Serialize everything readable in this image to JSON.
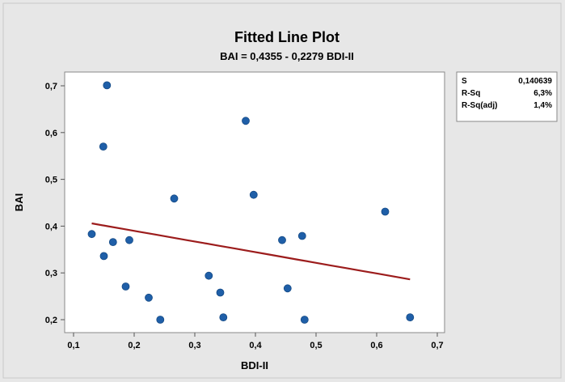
{
  "chart_data": {
    "type": "scatter",
    "title": "Fitted Line Plot",
    "subtitle": "BAI = 0,4355 - 0,2279 BDI-II",
    "xlabel": "BDI-II",
    "ylabel": "BAI",
    "xlim": [
      0.1,
      0.7
    ],
    "ylim": [
      0.18,
      0.72
    ],
    "xticks": [
      0.1,
      0.2,
      0.3,
      0.4,
      0.5,
      0.6,
      0.7
    ],
    "xtick_labels": [
      "0,1",
      "0,2",
      "0,3",
      "0,4",
      "0,5",
      "0,6",
      "0,7"
    ],
    "yticks": [
      0.2,
      0.3,
      0.4,
      0.5,
      0.6,
      0.7
    ],
    "ytick_labels": [
      "0,2",
      "0,3",
      "0,4",
      "0,5",
      "0,6",
      "0,7"
    ],
    "grid": false,
    "point_color": "#1f5fa8",
    "line_color": "#9c1c1c",
    "points": [
      {
        "x": 0.13,
        "y": 0.383
      },
      {
        "x": 0.149,
        "y": 0.57
      },
      {
        "x": 0.15,
        "y": 0.336
      },
      {
        "x": 0.155,
        "y": 0.701
      },
      {
        "x": 0.165,
        "y": 0.366
      },
      {
        "x": 0.186,
        "y": 0.271
      },
      {
        "x": 0.192,
        "y": 0.37
      },
      {
        "x": 0.224,
        "y": 0.247
      },
      {
        "x": 0.243,
        "y": 0.2
      },
      {
        "x": 0.266,
        "y": 0.459
      },
      {
        "x": 0.323,
        "y": 0.294
      },
      {
        "x": 0.342,
        "y": 0.258
      },
      {
        "x": 0.347,
        "y": 0.205
      },
      {
        "x": 0.384,
        "y": 0.625
      },
      {
        "x": 0.397,
        "y": 0.467
      },
      {
        "x": 0.444,
        "y": 0.37
      },
      {
        "x": 0.453,
        "y": 0.267
      },
      {
        "x": 0.477,
        "y": 0.379
      },
      {
        "x": 0.481,
        "y": 0.2
      },
      {
        "x": 0.614,
        "y": 0.431
      },
      {
        "x": 0.655,
        "y": 0.205
      }
    ],
    "fit_line": {
      "intercept": 0.4355,
      "slope": -0.2279,
      "x_range": [
        0.13,
        0.655
      ]
    },
    "stats": [
      {
        "label": "S",
        "value": "0,140639"
      },
      {
        "label": "R-Sq",
        "value": "6,3%"
      },
      {
        "label": "R-Sq(adj)",
        "value": "1,4%"
      }
    ]
  }
}
